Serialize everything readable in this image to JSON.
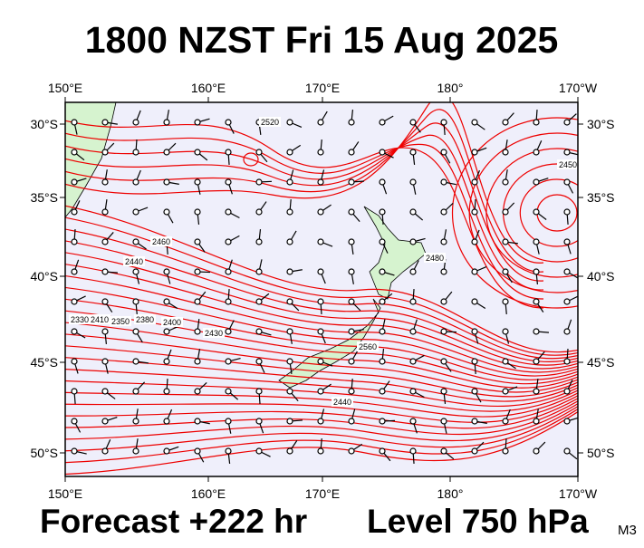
{
  "header": {
    "title": "1800 NZST Fri 15 Aug 2025"
  },
  "footer": {
    "forecast": "Forecast +222 hr",
    "level": "Level 750 hPa",
    "code": "M3"
  },
  "axes": {
    "longitudes": [
      "150°E",
      "160°E",
      "170°E",
      "180°",
      "170°W"
    ],
    "latitudes": [
      "30°S",
      "35°S",
      "40°S",
      "45°S",
      "50°S"
    ]
  },
  "contour_labels": [
    "2520",
    "2460",
    "2440",
    "2330",
    "2410",
    "2350",
    "2380",
    "2400",
    "2430",
    "2480",
    "2560",
    "2440",
    "2450"
  ]
}
